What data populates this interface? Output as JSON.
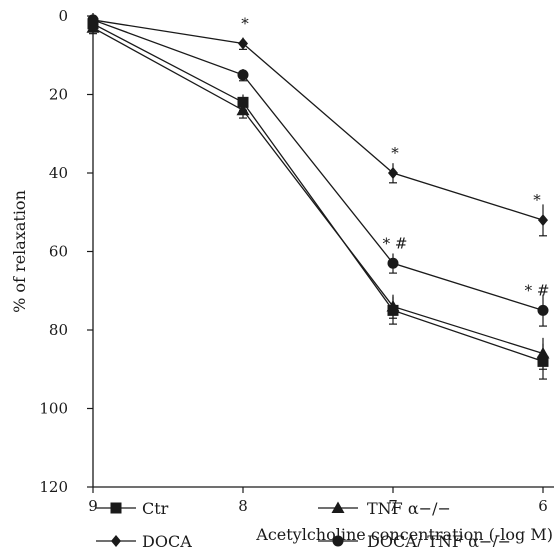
{
  "chart_data": {
    "type": "line",
    "xlabel": "Acetylcholine concentration (-log M)",
    "ylabel": "% of relaxation",
    "x": [
      9,
      8,
      7,
      6
    ],
    "xlim": [
      9,
      6
    ],
    "ylim": [
      120,
      0
    ],
    "yticks": [
      0,
      20,
      40,
      60,
      80,
      100,
      120
    ],
    "xticks": [
      9,
      8,
      7,
      6
    ],
    "grid": false,
    "legend_position": "bottom",
    "series": [
      {
        "name": "Ctr",
        "marker": "square",
        "values": [
          2,
          22,
          75,
          88
        ],
        "errors": [
          1.5,
          2,
          3.5,
          4.5
        ]
      },
      {
        "name": "TNF α−/−",
        "marker": "triangle",
        "values": [
          3,
          24,
          74,
          86
        ],
        "errors": [
          1.5,
          2,
          3,
          4
        ]
      },
      {
        "name": "DOCA",
        "marker": "diamond",
        "values": [
          1,
          7,
          40,
          52
        ],
        "errors": [
          1,
          1.5,
          2.5,
          4
        ]
      },
      {
        "name": "DOCA/ TNF α−/−",
        "marker": "circle",
        "values": [
          1,
          15,
          63,
          75
        ],
        "errors": [
          1,
          1.5,
          2.5,
          4
        ]
      }
    ],
    "annotations": [
      {
        "text": "*",
        "x": 8,
        "series": "DOCA"
      },
      {
        "text": "*",
        "x": 7,
        "series": "DOCA"
      },
      {
        "text": "*",
        "x": 6,
        "series": "DOCA"
      },
      {
        "text": "* #",
        "x": 7,
        "series": "DOCA/ TNF α−/−"
      },
      {
        "text": "* #",
        "x": 6,
        "series": "DOCA/ TNF α−/−"
      }
    ]
  }
}
